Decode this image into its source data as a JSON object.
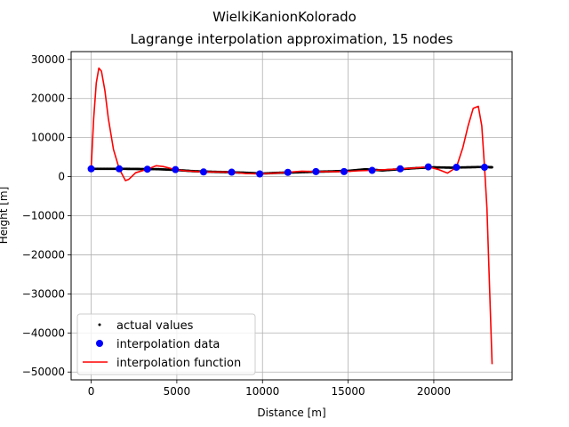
{
  "chart_data": {
    "type": "line",
    "suptitle": "WielkiKanionKolorado",
    "title": "Lagrange interpolation approximation, 15 nodes",
    "xlabel": "Distance [m]",
    "ylabel": "Height [m]",
    "xlim": [
      -1170,
      24570
    ],
    "ylim": [
      -52000,
      32000
    ],
    "xticks": [
      0,
      5000,
      10000,
      15000,
      20000
    ],
    "xtick_labels": [
      "0",
      "5000",
      "10000",
      "15000",
      "20000"
    ],
    "yticks": [
      -50000,
      -40000,
      -30000,
      -20000,
      -10000,
      0,
      10000,
      20000,
      30000
    ],
    "ytick_labels": [
      "−50000",
      "−40000",
      "−30000",
      "−20000",
      "−10000",
      "0",
      "10000",
      "20000",
      "30000"
    ],
    "grid": true,
    "legend_position": "lower-left",
    "series": [
      {
        "name": "actual values",
        "style": "points",
        "color": "#000000",
        "x": [
          0,
          1000,
          2000,
          3000,
          4000,
          5000,
          6000,
          7000,
          8000,
          9000,
          10000,
          11000,
          12000,
          13000,
          14000,
          15000,
          16000,
          17000,
          18000,
          19000,
          20000,
          21000,
          22000,
          23000,
          23400
        ],
        "y": [
          2000,
          2000,
          2000,
          1950,
          1900,
          1700,
          1400,
          1250,
          1150,
          1000,
          800,
          1000,
          1100,
          1250,
          1350,
          1500,
          1900,
          1600,
          1900,
          2200,
          2400,
          2300,
          2400,
          2500,
          2400
        ]
      },
      {
        "name": "interpolation data",
        "style": "markers",
        "color": "#0000ff",
        "x": [
          0,
          1640,
          3280,
          4920,
          6560,
          8200,
          9840,
          11480,
          13120,
          14760,
          16400,
          18040,
          19680,
          21320,
          22960
        ],
        "y": [
          2000,
          2000,
          1900,
          1800,
          1200,
          1150,
          700,
          1100,
          1300,
          1300,
          1600,
          2000,
          2500,
          2400,
          2400
        ]
      },
      {
        "name": "interpolation function",
        "style": "line",
        "color": "#ff0000",
        "x": [
          0,
          150,
          300,
          450,
          600,
          800,
          1000,
          1300,
          1640,
          2000,
          2200,
          2600,
          3280,
          3800,
          4200,
          4920,
          5500,
          6560,
          7500,
          8200,
          9000,
          9840,
          10800,
          11480,
          12300,
          13120,
          14000,
          14760,
          15600,
          16400,
          17200,
          18040,
          18800,
          19680,
          20300,
          20800,
          21320,
          21700,
          22000,
          22300,
          22600,
          22800,
          22960,
          23100,
          23250,
          23400
        ],
        "y": [
          2000,
          15000,
          24000,
          27800,
          27000,
          22000,
          15000,
          7000,
          2000,
          -1000,
          -700,
          1000,
          1900,
          2800,
          2600,
          1800,
          1500,
          1200,
          1200,
          1150,
          800,
          700,
          900,
          1100,
          1400,
          1300,
          1300,
          1300,
          1500,
          1600,
          1800,
          2000,
          2200,
          2500,
          1800,
          900,
          2400,
          7500,
          13000,
          17500,
          18000,
          13000,
          2400,
          -8000,
          -28000,
          -48000
        ]
      }
    ]
  }
}
